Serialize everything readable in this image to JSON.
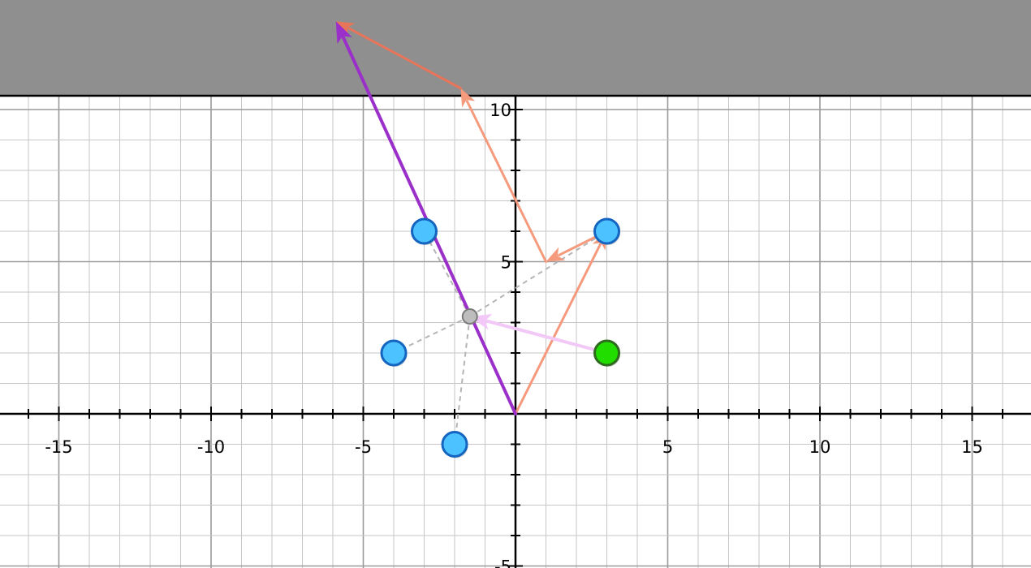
{
  "plane": {
    "x_range": [
      -17,
      17
    ],
    "y_range": [
      -5,
      13.4
    ],
    "major_step": 5,
    "minor_step": 1,
    "x_tick_labels": [
      {
        "value": -15,
        "label": "-15"
      },
      {
        "value": -10,
        "label": "-10"
      },
      {
        "value": -5,
        "label": "-5"
      },
      {
        "value": 5,
        "label": "5"
      },
      {
        "value": 10,
        "label": "10"
      },
      {
        "value": 15,
        "label": "15"
      }
    ],
    "y_tick_labels": [
      {
        "value": 10,
        "label": "10"
      },
      {
        "value": 5,
        "label": "5"
      },
      {
        "value": -5,
        "label": "-5"
      }
    ],
    "colors": {
      "background": "#ffffff",
      "minor_grid": "#c6c6c6",
      "major_grid": "#9a9a9a",
      "axis": "#000000",
      "top_band": "#8f8f8f"
    }
  },
  "draggable_points": [
    {
      "name": "blue-point-1",
      "x": -3,
      "y": 6,
      "color": "#4cc3ff",
      "stroke": "#1565c0"
    },
    {
      "name": "blue-point-2",
      "x": 3,
      "y": 6,
      "color": "#4cc3ff",
      "stroke": "#1565c0"
    },
    {
      "name": "blue-point-3",
      "x": -4,
      "y": 2,
      "color": "#4cc3ff",
      "stroke": "#1565c0"
    },
    {
      "name": "blue-point-4",
      "x": -2,
      "y": -1,
      "color": "#4cc3ff",
      "stroke": "#1565c0"
    },
    {
      "name": "green-point",
      "x": 3,
      "y": 2,
      "color": "#22dd00",
      "stroke": "#2e6b1e"
    }
  ],
  "centroid": {
    "x": -1.5,
    "y": 3.2,
    "color": "#bdbdbd",
    "stroke": "#7a7a7a"
  },
  "dashed_lines": [
    {
      "from": [
        -1.5,
        3.2
      ],
      "to": [
        -3,
        6
      ]
    },
    {
      "from": [
        -1.5,
        3.2
      ],
      "to": [
        3,
        6
      ]
    },
    {
      "from": [
        -1.5,
        3.2
      ],
      "to": [
        -4,
        2
      ]
    },
    {
      "from": [
        -1.5,
        3.2
      ],
      "to": [
        -2,
        -1
      ]
    }
  ],
  "vectors": [
    {
      "name": "salmon-vector-origin-to-b",
      "from": [
        0,
        0
      ],
      "to": [
        3,
        6
      ],
      "color": "#f59a7c",
      "width": 3
    },
    {
      "name": "salmon-vector-b-to-c",
      "from": [
        3,
        6
      ],
      "to": [
        1,
        5
      ],
      "color": "#f59a7c",
      "width": 3
    },
    {
      "name": "salmon-vector-c-to-d",
      "from": [
        1,
        5
      ],
      "to": [
        -1.8,
        10.7
      ],
      "color": "#f59a7c",
      "width": 3
    },
    {
      "name": "orange-vector-d-to-e",
      "from": [
        -1.8,
        10.7
      ],
      "to": [
        -5.9,
        12.9
      ],
      "color": "#e8755a",
      "width": 3
    },
    {
      "name": "purple-vector-origin-to-e",
      "from": [
        0,
        0
      ],
      "to": [
        -5.9,
        12.9
      ],
      "color": "#9b2fc9",
      "width": 4
    },
    {
      "name": "pink-vector-green-to-centroid",
      "from": [
        3,
        2
      ],
      "to": [
        -1.5,
        3.2
      ],
      "color": "#f2c8f7",
      "width": 4
    }
  ]
}
